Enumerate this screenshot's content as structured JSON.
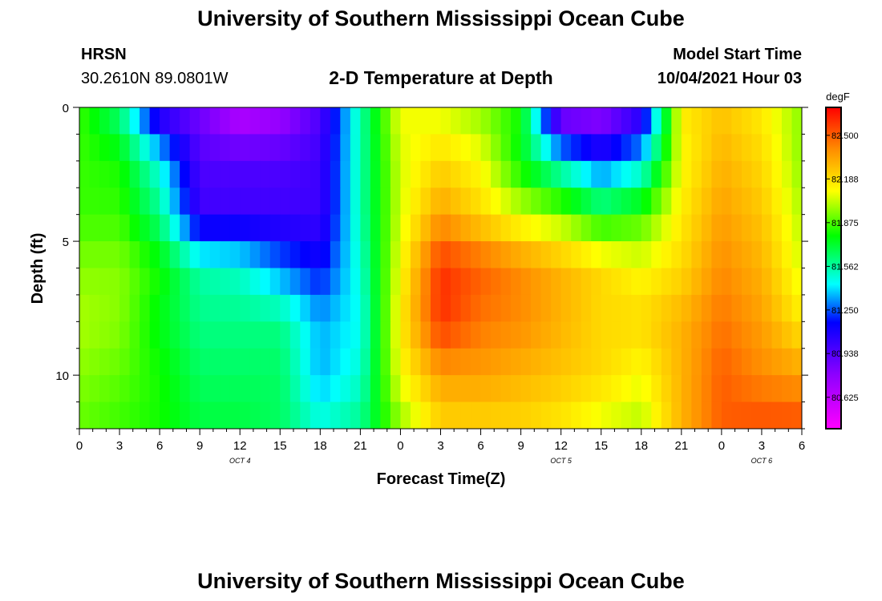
{
  "header": {
    "title": "University of Southern Mississippi Ocean Cube",
    "station": "HRSN",
    "location": "30.2610N  89.0801W",
    "plot_title": "2-D Temperature at Depth",
    "model_label": "Model Start Time",
    "model_time": "10/04/2021 Hour 03"
  },
  "footer": {
    "title": "University of Southern Mississippi Ocean Cube"
  },
  "chart_data": {
    "type": "heatmap",
    "title": "2-D Temperature at Depth",
    "xlabel": "Forecast Time(Z)",
    "ylabel": "Depth (ft)",
    "colorbar_unit": "degF",
    "x_hours_range": [
      0,
      54
    ],
    "y_range_ft": [
      0,
      12
    ],
    "y_ticks": [
      "0",
      "5",
      "10"
    ],
    "y_tick_values": [
      0,
      5,
      10
    ],
    "x_ticks": [
      {
        "hour": 0,
        "label": "0"
      },
      {
        "hour": 3,
        "label": "3"
      },
      {
        "hour": 6,
        "label": "6"
      },
      {
        "hour": 9,
        "label": "9"
      },
      {
        "hour": 12,
        "label": "12"
      },
      {
        "hour": 15,
        "label": "15"
      },
      {
        "hour": 18,
        "label": "18"
      },
      {
        "hour": 21,
        "label": "21"
      },
      {
        "hour": 24,
        "label": "0"
      },
      {
        "hour": 27,
        "label": "3"
      },
      {
        "hour": 30,
        "label": "6"
      },
      {
        "hour": 33,
        "label": "9"
      },
      {
        "hour": 36,
        "label": "12"
      },
      {
        "hour": 39,
        "label": "15"
      },
      {
        "hour": 42,
        "label": "18"
      },
      {
        "hour": 45,
        "label": "21"
      },
      {
        "hour": 48,
        "label": "0"
      },
      {
        "hour": 51,
        "label": "3"
      },
      {
        "hour": 54,
        "label": "6"
      }
    ],
    "date_labels": [
      {
        "hour": 12,
        "label": "OCT 4"
      },
      {
        "hour": 36,
        "label": "OCT 5"
      },
      {
        "hour": 51,
        "label": "OCT 6"
      }
    ],
    "colorbar_ticks": [
      "82.500",
      "82.188",
      "81.875",
      "81.562",
      "81.250",
      "80.938",
      "80.625"
    ],
    "colorbar_range": [
      80.4,
      82.7
    ],
    "columns_hours": [
      0,
      3,
      6,
      9,
      12,
      15,
      18,
      21,
      24,
      27,
      30,
      33,
      36,
      39,
      42,
      45,
      48,
      51,
      54
    ],
    "rows_depth_ft": [
      0,
      2,
      4,
      6,
      8,
      10,
      12
    ],
    "temperature_degF": [
      [
        81.85,
        81.6,
        80.95,
        80.85,
        80.6,
        80.7,
        80.95,
        81.55,
        82.1,
        82.05,
        81.95,
        81.8,
        80.7,
        80.7,
        80.95,
        82.15,
        82.25,
        82.15,
        81.95
      ],
      [
        81.85,
        81.8,
        81.45,
        80.95,
        80.95,
        80.95,
        81.0,
        81.55,
        82.05,
        82.2,
        82.1,
        81.75,
        81.45,
        81.2,
        81.4,
        82.1,
        82.3,
        82.2,
        81.95
      ],
      [
        81.85,
        81.85,
        81.6,
        81.0,
        81.0,
        81.0,
        81.0,
        81.55,
        82.05,
        82.35,
        82.2,
        82.05,
        81.95,
        81.75,
        81.85,
        82.15,
        82.35,
        82.25,
        82.0
      ],
      [
        81.95,
        81.95,
        81.8,
        81.55,
        81.5,
        81.3,
        81.15,
        81.5,
        82.1,
        82.6,
        82.5,
        82.4,
        82.3,
        82.2,
        82.1,
        82.2,
        82.4,
        82.3,
        82.05
      ],
      [
        82.0,
        81.95,
        81.75,
        81.6,
        81.6,
        81.6,
        81.35,
        81.45,
        82.15,
        82.6,
        82.45,
        82.4,
        82.3,
        82.2,
        82.2,
        82.3,
        82.45,
        82.35,
        82.15
      ],
      [
        81.95,
        81.9,
        81.8,
        81.65,
        81.65,
        81.65,
        81.35,
        81.5,
        82.1,
        82.35,
        82.35,
        82.3,
        82.25,
        82.2,
        82.1,
        82.3,
        82.5,
        82.4,
        82.35
      ],
      [
        81.9,
        81.85,
        81.8,
        81.7,
        81.7,
        81.65,
        81.5,
        81.6,
        81.95,
        82.2,
        82.2,
        82.2,
        82.15,
        82.05,
        82.0,
        82.3,
        82.5,
        82.55,
        82.55
      ]
    ]
  }
}
